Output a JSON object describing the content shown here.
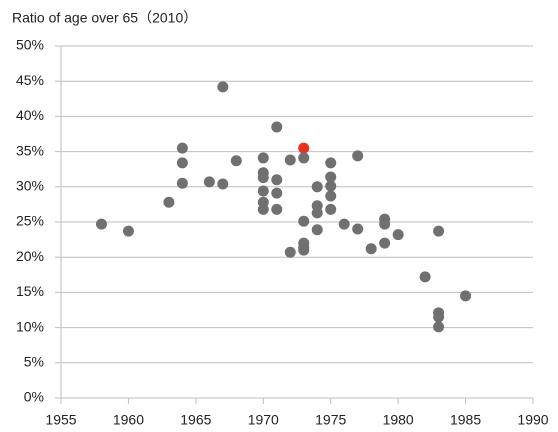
{
  "chart_data": {
    "type": "scatter",
    "title": "Ratio of age over 65（2010）",
    "x": [
      1958,
      1960,
      1963,
      1964,
      1964,
      1964,
      1966,
      1967,
      1967,
      1968,
      1970,
      1970,
      1970,
      1970,
      1970,
      1970,
      1971,
      1971,
      1971,
      1971,
      1972,
      1972,
      1973,
      1973,
      1973,
      1973,
      1973,
      1973,
      1974,
      1974,
      1974,
      1974,
      1975,
      1975,
      1975,
      1975,
      1975,
      1976,
      1977,
      1977,
      1978,
      1979,
      1979,
      1979,
      1980,
      1982,
      1983,
      1983,
      1983,
      1983,
      1985
    ],
    "values": [
      24.7,
      23.7,
      27.8,
      35.5,
      33.4,
      30.5,
      30.7,
      44.2,
      30.4,
      33.7,
      34.1,
      32.0,
      31.3,
      29.4,
      27.8,
      26.8,
      38.5,
      31.0,
      29.1,
      26.8,
      33.8,
      20.7,
      35.5,
      34.1,
      25.1,
      22.0,
      21.4,
      21.0,
      30.0,
      27.3,
      26.3,
      23.9,
      33.4,
      31.4,
      30.1,
      28.7,
      26.8,
      24.7,
      34.4,
      24.0,
      21.2,
      25.4,
      24.7,
      22.0,
      23.2,
      17.2,
      23.7,
      12.1,
      11.5,
      10.1,
      14.5
    ],
    "colors": [
      "#707070",
      "#707070",
      "#707070",
      "#707070",
      "#707070",
      "#707070",
      "#707070",
      "#707070",
      "#707070",
      "#707070",
      "#707070",
      "#707070",
      "#707070",
      "#707070",
      "#707070",
      "#707070",
      "#707070",
      "#707070",
      "#707070",
      "#707070",
      "#707070",
      "#707070",
      "#e8301c",
      "#707070",
      "#707070",
      "#707070",
      "#707070",
      "#707070",
      "#707070",
      "#707070",
      "#707070",
      "#707070",
      "#707070",
      "#707070",
      "#707070",
      "#707070",
      "#707070",
      "#707070",
      "#707070",
      "#707070",
      "#707070",
      "#707070",
      "#707070",
      "#707070",
      "#707070",
      "#707070",
      "#707070",
      "#707070",
      "#707070",
      "#707070",
      "#707070"
    ],
    "xlim": [
      1955,
      1990
    ],
    "xticks": [
      1955,
      1960,
      1965,
      1970,
      1975,
      1980,
      1985,
      1990
    ],
    "ylim": [
      0,
      50
    ],
    "yticks": [
      {
        "value": 0,
        "label": "0%"
      },
      {
        "value": 5,
        "label": "5%"
      },
      {
        "value": 10,
        "label": "10%"
      },
      {
        "value": 15,
        "label": "15%"
      },
      {
        "value": 20,
        "label": "20%"
      },
      {
        "value": 25,
        "label": "25%"
      },
      {
        "value": 30,
        "label": "30%"
      },
      {
        "value": 35,
        "label": "35%"
      },
      {
        "value": 40,
        "label": "40%"
      },
      {
        "value": 45,
        "label": "45%"
      },
      {
        "value": 50,
        "label": "50%"
      }
    ],
    "grid": true
  }
}
